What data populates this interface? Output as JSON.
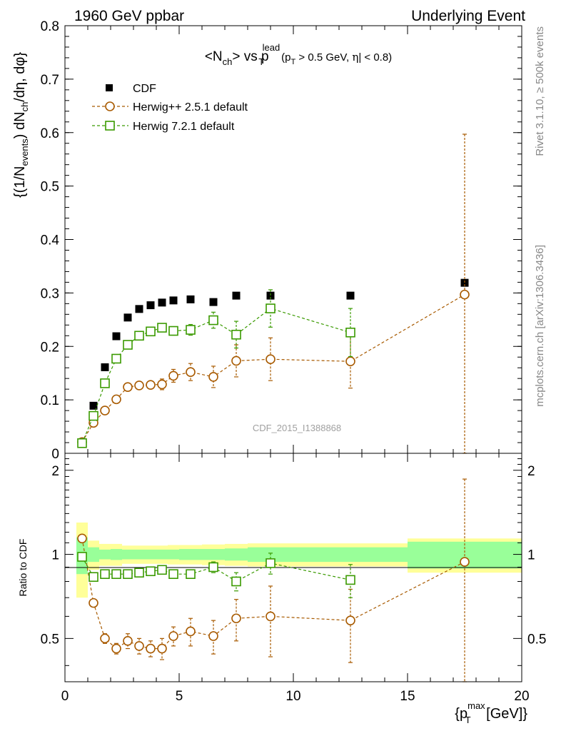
{
  "header": {
    "left": "1960 GeV ppbar",
    "right": "Underlying Event"
  },
  "side_labels": {
    "rivet": "Rivet 3.1.10, ≥ 500k events",
    "mcplots": "mcplots.cern.ch [arXiv:1306.3436]"
  },
  "watermark": "CDF_2015_I1388868",
  "chart_data": [
    {
      "type": "scatter",
      "title": "<N_ch> vs p_T^lead (p_T > 0.5 GeV, |η| < 0.8)",
      "title_parts": {
        "a": "<N",
        "a_sub": "ch",
        "b": "> vs p",
        "b_sub": "T",
        "b_sup": "lead",
        "c1": "(p",
        "c1_sub": "T",
        "c2": " > 0.5 GeV, ",
        "eta": "η",
        "c3": "| < 0.8)"
      },
      "ylabel": "{(1/N_events) dN_ch/dη, dφ}",
      "ylabel_parts": {
        "p1": "{(1/N",
        "p1_sub": "events",
        "p2": ") dN",
        "p2_sub": "ch",
        "p3": "/dη, dφ}"
      },
      "xlim": [
        0,
        20
      ],
      "ylim": [
        0,
        0.8
      ],
      "yticks": [
        0,
        0.1,
        0.2,
        0.3,
        0.4,
        0.5,
        0.6,
        0.7,
        0.8
      ],
      "ytick_labels": [
        "0",
        "0.1",
        "0.2",
        "0.3",
        "0.4",
        "0.5",
        "0.6",
        "0.7",
        "0.8"
      ],
      "legend_position": "top-left",
      "series": [
        {
          "name": "CDF",
          "color": "#000000",
          "marker": "filled-square",
          "x": [
            0.75,
            1.25,
            1.75,
            2.25,
            2.75,
            3.25,
            3.75,
            4.25,
            4.75,
            5.5,
            6.5,
            7.5,
            9,
            12.5,
            17.5
          ],
          "y": [
            0.019,
            0.089,
            0.161,
            0.219,
            0.254,
            0.27,
            0.277,
            0.282,
            0.286,
            0.288,
            0.283,
            0.295,
            0.295,
            0.295,
            0.319
          ],
          "ybox": [
            0.07,
            0.04,
            0.03,
            0.03,
            0.03,
            0.03,
            0.03,
            0.03,
            0.03,
            0.03,
            0.03,
            0.03,
            0.04,
            0.04,
            0.06
          ],
          "ygreen": [
            0.15,
            0.06,
            0.04,
            0.045,
            0.04,
            0.04,
            0.04,
            0.04,
            0.04,
            0.045,
            0.045,
            0.05,
            0.06,
            0.06,
            0.11
          ],
          "yyellow": [
            0.3,
            0.12,
            0.09,
            0.09,
            0.075,
            0.075,
            0.075,
            0.075,
            0.08,
            0.08,
            0.085,
            0.09,
            0.095,
            0.095,
            0.14
          ],
          "xedges": [
            0.5,
            1.0,
            1.5,
            2.0,
            2.5,
            3.0,
            3.5,
            4.0,
            4.5,
            5.0,
            6.0,
            7.0,
            8.0,
            10.0,
            15.0,
            20.0
          ]
        },
        {
          "name": "Herwig++ 2.5.1 default",
          "color": "#a85a00",
          "marker": "open-circle",
          "x": [
            0.75,
            1.25,
            1.75,
            2.25,
            2.75,
            3.25,
            3.75,
            4.25,
            4.75,
            5.5,
            6.5,
            7.5,
            9,
            12.5,
            17.5
          ],
          "y": [
            0.021,
            0.057,
            0.08,
            0.101,
            0.124,
            0.127,
            0.128,
            0.129,
            0.145,
            0.152,
            0.143,
            0.173,
            0.176,
            0.172,
            0.297
          ],
          "yerr": [
            0.003,
            0.004,
            0.005,
            0.005,
            0.006,
            0.007,
            0.007,
            0.01,
            0.012,
            0.016,
            0.02,
            0.03,
            0.04,
            0.05,
            0.3
          ]
        },
        {
          "name": "Herwig 7.2.1 default",
          "color": "#3a9a00",
          "marker": "open-square",
          "x": [
            0.75,
            1.25,
            1.75,
            2.25,
            2.75,
            3.25,
            3.75,
            4.25,
            4.75,
            5.5,
            6.5,
            7.5,
            9,
            12.5
          ],
          "y": [
            0.019,
            0.07,
            0.131,
            0.177,
            0.203,
            0.22,
            0.228,
            0.235,
            0.229,
            0.231,
            0.249,
            0.222,
            0.271,
            0.226
          ],
          "yerr": [
            0.002,
            0.003,
            0.004,
            0.005,
            0.005,
            0.006,
            0.006,
            0.007,
            0.008,
            0.01,
            0.015,
            0.025,
            0.035,
            0.045
          ]
        }
      ]
    },
    {
      "type": "scatter",
      "ylabel": "Ratio to CDF",
      "xlabel": "{p_T^max [GeV]}",
      "xlabel_parts": {
        "a": "{p",
        "a_sub": "T",
        "a_sup": "max",
        "b": " [GeV]}"
      },
      "xlim": [
        0,
        20
      ],
      "ylim": [
        0.35,
        2.3
      ],
      "yticks": [
        0.5,
        1,
        2
      ],
      "ytick_labels": [
        "0.5",
        "1",
        "2"
      ],
      "xticks": [
        0,
        5,
        10,
        15,
        20
      ],
      "xtick_labels": [
        "0",
        "5",
        "10",
        "15",
        "20"
      ],
      "series": [
        {
          "name": "Herwig++ 2.5.1 default",
          "color": "#a85a00",
          "marker": "open-circle",
          "x": [
            0.75,
            1.25,
            1.75,
            2.25,
            2.75,
            3.25,
            3.75,
            4.25,
            4.75,
            5.5,
            6.5,
            7.5,
            9,
            12.5,
            17.5
          ],
          "y": [
            1.14,
            0.67,
            0.5,
            0.46,
            0.49,
            0.47,
            0.46,
            0.46,
            0.51,
            0.53,
            0.51,
            0.59,
            0.6,
            0.58,
            0.94
          ],
          "yerr": [
            0.03,
            0.02,
            0.02,
            0.02,
            0.03,
            0.03,
            0.03,
            0.04,
            0.04,
            0.06,
            0.07,
            0.1,
            0.17,
            0.17,
            0.92
          ]
        },
        {
          "name": "Herwig 7.2.1 default",
          "color": "#3a9a00",
          "marker": "open-square",
          "x": [
            0.75,
            1.25,
            1.75,
            2.25,
            2.75,
            3.25,
            3.75,
            4.25,
            4.75,
            5.5,
            6.5,
            7.5,
            9,
            12.5
          ],
          "y": [
            0.98,
            0.83,
            0.85,
            0.85,
            0.85,
            0.86,
            0.87,
            0.88,
            0.85,
            0.85,
            0.9,
            0.8,
            0.93,
            0.81
          ],
          "yerr": [
            0.02,
            0.015,
            0.015,
            0.015,
            0.015,
            0.015,
            0.02,
            0.02,
            0.02,
            0.025,
            0.04,
            0.06,
            0.08,
            0.11
          ]
        }
      ]
    }
  ]
}
